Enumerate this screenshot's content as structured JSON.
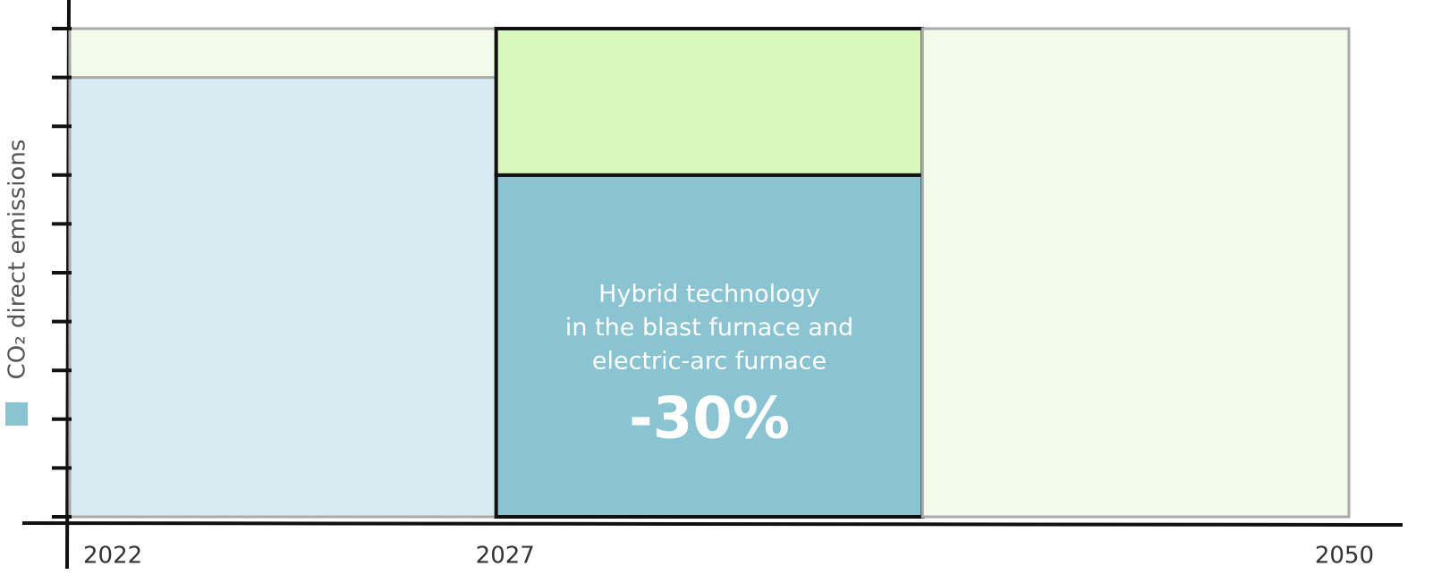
{
  "chart_data": {
    "type": "stacked_bar",
    "x_labels": [
      "2022",
      "2027",
      "2050"
    ],
    "categories": [
      null,
      null,
      null
    ],
    "highlight": 1,
    "series": [
      {
        "name": "CO₂ direct emissions",
        "color": "#8ac4d3",
        "colors": [
          "#d8ebf1",
          "#8ac4d3",
          "#d8ebf1"
        ],
        "values": [
          9,
          7,
          0
        ]
      },
      {
        "name": null,
        "color": "#d9f8bd",
        "colors": [
          "#f2fbe9",
          "#d9f8bd",
          "#f2fbe9"
        ],
        "values": [
          1,
          3,
          10
        ]
      }
    ],
    "ylim": [
      0,
      10
    ],
    "yticks": [
      0,
      1,
      2,
      3,
      4,
      5,
      6,
      7,
      8,
      9,
      10
    ],
    "annotation": {
      "lines": [
        "Hybrid technology",
        "in the blast furnace and",
        "electric-arc furnace"
      ],
      "change": -30,
      "change_label": "-30%"
    }
  }
}
